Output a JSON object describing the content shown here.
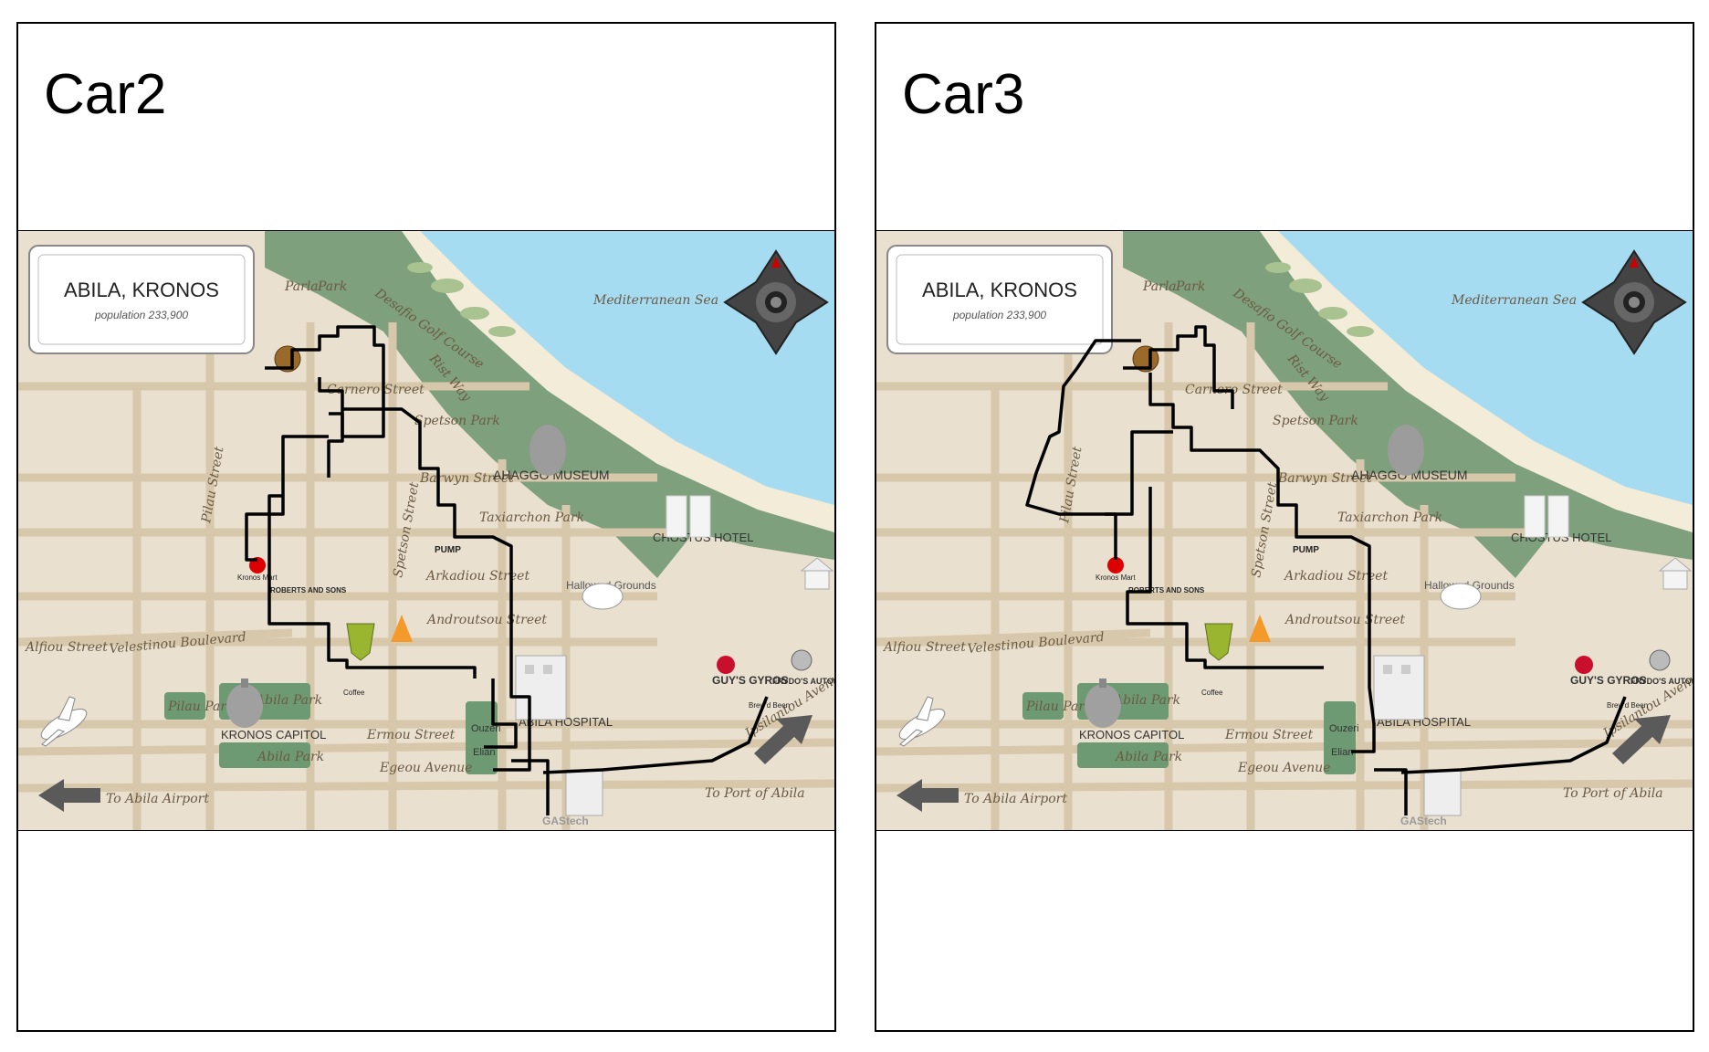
{
  "panels": [
    {
      "title": "Car2",
      "map": {
        "city_name": "ABILA, KRONOS",
        "population": "population 233,900",
        "sea": "Mediterranean Sea",
        "labels": {
          "golf": "Desafio Golf Course",
          "rist_way": "Rist Way",
          "parla_park": "Parla",
          "parla_park2": "Park",
          "carnero": "Carnero Street",
          "spetson_park": "Spetson Park",
          "barwyn": "Barwyn Street",
          "museum": "AHAGGO MUSEUM",
          "taxiarchon": "Taxiarchon Park",
          "chostus": "CHOSTUS HOTEL",
          "arkadiou": "Arkadiou Street",
          "hallowed": "Hallowed Grounds",
          "androutsou": "Androutsou Street",
          "pilau": "Pilau Street",
          "spetson_street": "Spetson Street",
          "velestinou": "Velestinou Boulevard",
          "alfiou": "Alfiou Street",
          "abila_park": "Abila Park",
          "pilau_park": "Pilau Park",
          "kronos_capitol": "KRONOS CAPITOL",
          "abila_park2": "Abila Park",
          "ermou": "Ermou Street",
          "egeou": "Egeou Avenue",
          "hospital": "ABILA HOSPITAL",
          "ouzeri": "Ouzeri",
          "elian": "Elian",
          "airport": "To Abila Airport",
          "port": "To Port of Abila",
          "ipsilantou": "Ipsilantou Avenue",
          "guys": "GUY'S GYROS",
          "frydos": "FRYDO'S AUTOSUPPLY",
          "gastech": "GAStech",
          "pump": "PUMP",
          "roberts": "ROBERTS AND SONS",
          "kronos_mart": "Kronos Mart",
          "brew": "Brew'd Been",
          "coffee": "Coffee"
        }
      }
    },
    {
      "title": "Car3",
      "map": {
        "city_name": "ABILA, KRONOS",
        "population": "population 233,900",
        "sea": "Mediterranean Sea",
        "labels": {
          "golf": "Desafio Golf Course",
          "rist_way": "Rist Way",
          "parla_park": "Parla",
          "parla_park2": "Park",
          "carnero": "Carnero Street",
          "spetson_park": "Spetson Park",
          "barwyn": "Barwyn Street",
          "museum": "AHAGGO MUSEUM",
          "taxiarchon": "Taxiarchon Park",
          "chostus": "CHOSTUS HOTEL",
          "arkadiou": "Arkadiou Street",
          "hallowed": "Hallowed Grounds",
          "androutsou": "Androutsou Street",
          "pilau": "Pilau Street",
          "spetson_street": "Spetson Street",
          "velestinou": "Velestinou Boulevard",
          "alfiou": "Alfiou Street",
          "abila_park": "Abila Park",
          "pilau_park": "Pilau Park",
          "kronos_capitol": "KRONOS CAPITOL",
          "abila_park2": "Abila Park",
          "ermou": "Ermou Street",
          "egeou": "Egeou Avenue",
          "hospital": "ABILA HOSPITAL",
          "ouzeri": "Ouzeri",
          "elian": "Elian",
          "airport": "To Abila Airport",
          "port": "To Port of Abila",
          "ipsilantou": "Ipsilantou Avenue",
          "guys": "GUY'S GYROS",
          "frydos": "FRYDO'S AUTOSUPPLY",
          "gastech": "GAStech",
          "pump": "PUMP",
          "roberts": "ROBERTS AND SONS",
          "kronos_mart": "Kronos Mart",
          "brew": "Brew'd Been",
          "coffee": "Coffee"
        }
      }
    }
  ],
  "colors": {
    "land": "#e9e0cf",
    "water": "#a6dcf2",
    "coast": "#7ea07c",
    "beach": "#f3ecd9",
    "street": "#d7c8ab",
    "route": "#000000",
    "park": "#6e9a73"
  }
}
